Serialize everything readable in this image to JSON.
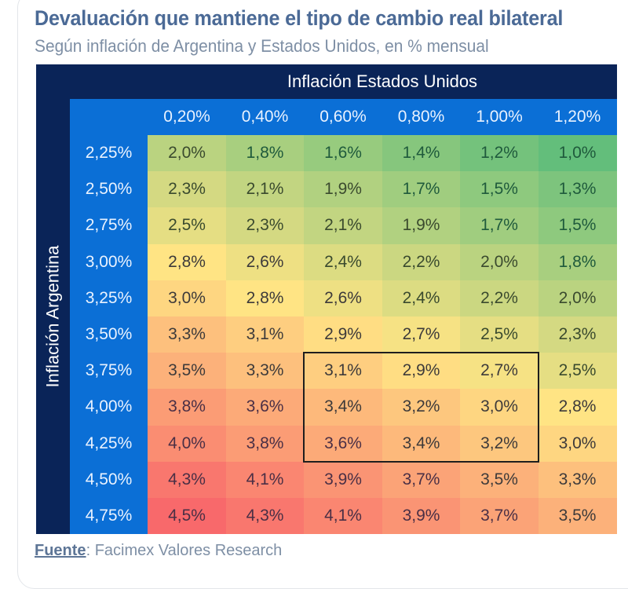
{
  "header": {
    "title": "Devaluación que mantiene el tipo de cambio real bilateral",
    "subtitle": "Según inflación de Argentina y Estados Unidos, en % mensual"
  },
  "footer": {
    "source_label": "Fuente",
    "source_separator": ": ",
    "source_text": "Facimex Valores Research"
  },
  "colors": {
    "frame": "#0a2458",
    "header_blue": "#0b6fd6",
    "scale_low": "#63be7b",
    "scale_mid": "#ffe484",
    "scale_high": "#f8696b",
    "highlight_border": "#1e1e1e"
  },
  "chart_data": {
    "type": "heatmap",
    "title": "Devaluación que mantiene el tipo de cambio real bilateral",
    "subtitle": "Según inflación de Argentina y Estados Unidos, en % mensual",
    "xlabel": "Inflación Estados Unidos",
    "ylabel": "Inflación Argentina",
    "x": [
      "0,20%",
      "0,40%",
      "0,60%",
      "0,80%",
      "1,00%",
      "1,20%"
    ],
    "y": [
      "2,25%",
      "2,50%",
      "2,75%",
      "3,00%",
      "3,25%",
      "3,50%",
      "3,75%",
      "4,00%",
      "4,25%",
      "4,50%",
      "4,75%"
    ],
    "values": [
      [
        2.0,
        1.8,
        1.6,
        1.4,
        1.2,
        1.0
      ],
      [
        2.3,
        2.1,
        1.9,
        1.7,
        1.5,
        1.3
      ],
      [
        2.5,
        2.3,
        2.1,
        1.9,
        1.7,
        1.5
      ],
      [
        2.8,
        2.6,
        2.4,
        2.2,
        2.0,
        1.8
      ],
      [
        3.0,
        2.8,
        2.6,
        2.4,
        2.2,
        2.0
      ],
      [
        3.3,
        3.1,
        2.9,
        2.7,
        2.5,
        2.3
      ],
      [
        3.5,
        3.3,
        3.1,
        2.9,
        2.7,
        2.5
      ],
      [
        3.8,
        3.6,
        3.4,
        3.2,
        3.0,
        2.8
      ],
      [
        4.0,
        3.8,
        3.6,
        3.4,
        3.2,
        3.0
      ],
      [
        4.3,
        4.1,
        3.9,
        3.7,
        3.5,
        3.3
      ],
      [
        4.5,
        4.3,
        4.1,
        3.9,
        3.7,
        3.5
      ]
    ],
    "value_labels": [
      [
        "2,0%",
        "1,8%",
        "1,6%",
        "1,4%",
        "1,2%",
        "1,0%"
      ],
      [
        "2,3%",
        "2,1%",
        "1,9%",
        "1,7%",
        "1,5%",
        "1,3%"
      ],
      [
        "2,5%",
        "2,3%",
        "2,1%",
        "1,9%",
        "1,7%",
        "1,5%"
      ],
      [
        "2,8%",
        "2,6%",
        "2,4%",
        "2,2%",
        "2,0%",
        "1,8%"
      ],
      [
        "3,0%",
        "2,8%",
        "2,6%",
        "2,4%",
        "2,2%",
        "2,0%"
      ],
      [
        "3,3%",
        "3,1%",
        "2,9%",
        "2,7%",
        "2,5%",
        "2,3%"
      ],
      [
        "3,5%",
        "3,3%",
        "3,1%",
        "2,9%",
        "2,7%",
        "2,5%"
      ],
      [
        "3,8%",
        "3,6%",
        "3,4%",
        "3,2%",
        "3,0%",
        "2,8%"
      ],
      [
        "4,0%",
        "3,8%",
        "3,6%",
        "3,4%",
        "3,2%",
        "3,0%"
      ],
      [
        "4,3%",
        "4,1%",
        "3,9%",
        "3,7%",
        "3,5%",
        "3,3%"
      ],
      [
        "4,5%",
        "4,3%",
        "4,1%",
        "3,9%",
        "3,7%",
        "3,5%"
      ]
    ],
    "color_scale": {
      "min": 1.0,
      "mid": 2.8,
      "max": 4.5
    },
    "highlight": {
      "rows": [
        "3,75%",
        "4,00%",
        "4,25%"
      ],
      "cols": [
        "0,60%",
        "0,80%",
        "1,00%"
      ]
    },
    "source": "Fuente: Facimex Valores Research"
  }
}
